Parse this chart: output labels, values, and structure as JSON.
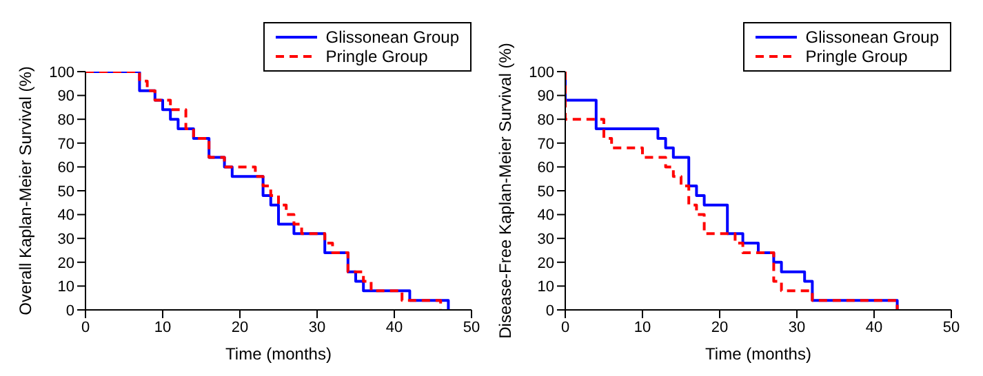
{
  "chart_data": [
    {
      "type": "step",
      "xlabel": "Time (months)",
      "ylabel": "Overall Kaplan-Meier Survival (%)",
      "xlim": [
        0,
        50
      ],
      "xticks": [
        0,
        10,
        20,
        30,
        40,
        50
      ],
      "ylim": [
        0,
        100
      ],
      "yticks": [
        0,
        10,
        20,
        30,
        40,
        50,
        60,
        70,
        80,
        90,
        100
      ],
      "grid": false,
      "legend": "top right",
      "marker": "none",
      "series": [
        {
          "name": "Glissonean Group",
          "color": "#0000ff",
          "line_style": "solid",
          "x": [
            0,
            7,
            9,
            10,
            11,
            12,
            14,
            16,
            18,
            19,
            23,
            24,
            25,
            27,
            31,
            34,
            35,
            36,
            42,
            47
          ],
          "values": [
            100,
            92,
            88,
            84,
            80,
            76,
            72,
            64,
            60,
            56,
            48,
            44,
            36,
            32,
            24,
            16,
            12,
            8,
            4,
            0
          ]
        },
        {
          "name": "Pringle Group",
          "color": "#ff0000",
          "line_style": "dashed",
          "x": [
            0,
            7,
            8,
            9,
            10,
            11,
            13,
            14,
            16,
            18,
            22,
            23,
            24,
            25,
            26,
            27,
            28,
            31,
            32,
            34,
            36,
            37,
            41,
            46
          ],
          "values": [
            100,
            96,
            92,
            88,
            88,
            84,
            76,
            72,
            64,
            60,
            56,
            52,
            48,
            44,
            40,
            36,
            32,
            28,
            24,
            16,
            12,
            8,
            4,
            0
          ]
        }
      ]
    },
    {
      "type": "step",
      "xlabel": "Time (months)",
      "ylabel": "Disease-Free Kaplan-Meier Survival (%)",
      "xlim": [
        0,
        50
      ],
      "xticks": [
        0,
        10,
        20,
        30,
        40,
        50
      ],
      "ylim": [
        0,
        100
      ],
      "yticks": [
        0,
        10,
        20,
        30,
        40,
        50,
        60,
        70,
        80,
        90,
        100
      ],
      "grid": false,
      "legend": "top right",
      "marker": "none",
      "series": [
        {
          "name": "Glissonean Group",
          "color": "#0000ff",
          "line_style": "solid",
          "x": [
            0,
            0,
            4,
            12,
            13,
            14,
            16,
            17,
            18,
            21,
            23,
            25,
            27,
            28,
            31,
            32,
            43
          ],
          "values": [
            100,
            88,
            76,
            72,
            68,
            64,
            52,
            48,
            44,
            32,
            28,
            24,
            20,
            16,
            12,
            4,
            0
          ]
        },
        {
          "name": "Pringle Group",
          "color": "#ff0000",
          "line_style": "dashed",
          "x": [
            0,
            0,
            5,
            6,
            10,
            13,
            14,
            15,
            16,
            17,
            18,
            22,
            23,
            27,
            28,
            32,
            43
          ],
          "values": [
            100,
            80,
            72,
            68,
            64,
            60,
            56,
            52,
            44,
            40,
            32,
            28,
            24,
            12,
            8,
            4,
            0
          ]
        }
      ]
    }
  ]
}
